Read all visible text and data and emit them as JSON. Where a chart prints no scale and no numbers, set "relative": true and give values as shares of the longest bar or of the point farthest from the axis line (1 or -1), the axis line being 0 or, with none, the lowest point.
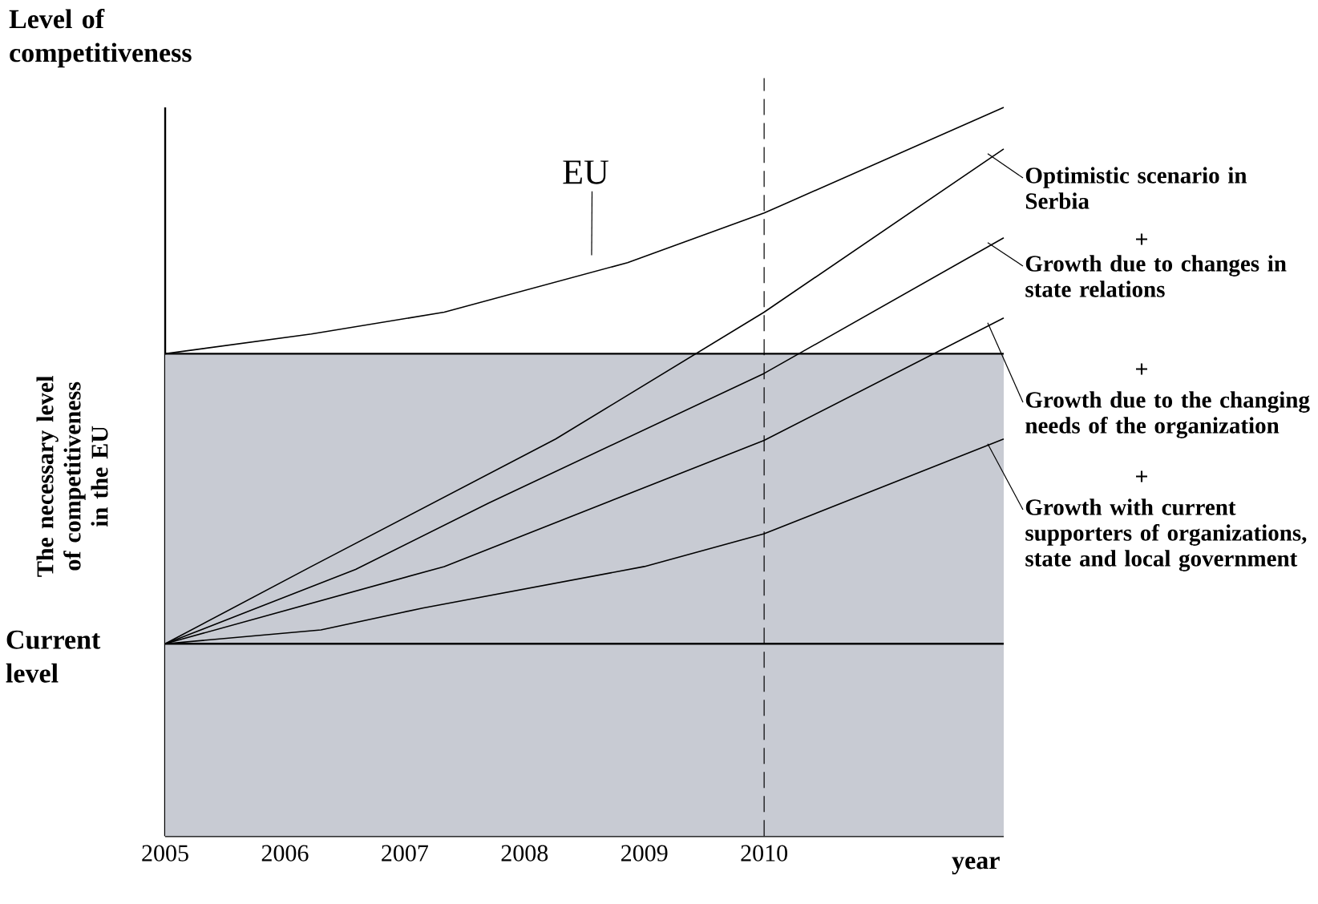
{
  "chart_data": {
    "type": "line",
    "relative": true,
    "ylabel": "Level of competitiveness",
    "xlabel": "year",
    "xlim": [
      2005,
      2012
    ],
    "xticks": [
      2005,
      2006,
      2007,
      2008,
      2009,
      2010
    ],
    "marker": "none",
    "line_style": "solid",
    "bands": [
      {
        "axis": "y",
        "from": 0,
        "to": 0.662,
        "color": "#c8cbd3"
      }
    ],
    "ref_lines": [
      {
        "axis": "y",
        "value": 0.662,
        "label": "The necessary level of competitiveness in the EU"
      },
      {
        "axis": "y",
        "value": 0.264,
        "label": "Current level"
      },
      {
        "axis": "x",
        "value": 2010,
        "line_style": "dashed"
      }
    ],
    "annotations": [
      "+",
      "+",
      "+"
    ],
    "series": [
      {
        "name": "EU",
        "color": "#000000",
        "x": [
          2005,
          2006.22,
          2007.33,
          2008.86,
          2010,
          2012
        ],
        "values": [
          0.662,
          0.689,
          0.719,
          0.787,
          0.855,
          1.0
        ]
      },
      {
        "name": "Optimistic scenario in Serbia",
        "color": "#000000",
        "x": [
          2005,
          2006.22,
          2008.26,
          2010,
          2012
        ],
        "values": [
          0.264,
          0.37,
          0.545,
          0.719,
          0.943
        ]
      },
      {
        "name": "Growth due to changes in state relations",
        "color": "#000000",
        "x": [
          2005,
          2006.59,
          2007.7,
          2010,
          2012
        ],
        "values": [
          0.264,
          0.366,
          0.457,
          0.635,
          0.821
        ]
      },
      {
        "name": "Growth due to the changing needs of the organization",
        "color": "#000000",
        "x": [
          2005,
          2007.33,
          2010,
          2012
        ],
        "values": [
          0.264,
          0.37,
          0.543,
          0.711
        ]
      },
      {
        "name": "Growth with current supporters of organizations, state and local government",
        "color": "#000000",
        "x": [
          2005,
          2006.3,
          2007.15,
          2009.0,
          2010,
          2012
        ],
        "values": [
          0.264,
          0.283,
          0.313,
          0.37,
          0.415,
          0.545
        ]
      }
    ]
  }
}
